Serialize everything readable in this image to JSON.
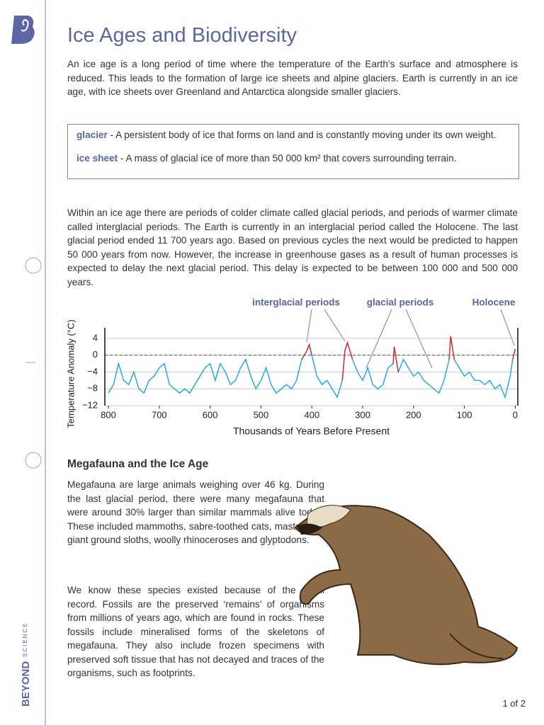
{
  "header": {
    "title": "Ice Ages and Biodiversity"
  },
  "intro": "An ice age is a long period of time where the temperature of the Earth’s surface and atmosphere is reduced. This leads to the formation of large ice sheets and alpine glaciers. Earth is currently in an ice age, with ice sheets over Greenland and Antarctica alongside smaller glaciers.",
  "definitions": [
    {
      "term": "glacier",
      "text": " - A persistent body of ice that forms on land and is constantly moving under its own weight."
    },
    {
      "term": "ice sheet",
      "text": " - A mass of glacial ice of more than 50 000 km² that covers surrounding terrain."
    }
  ],
  "paragraph2": "Within an ice age there are periods of colder climate called glacial periods, and periods of warmer climate called interglacial periods. The Earth is currently in an interglacial period called the Holocene. The last glacial period ended 11 700 years ago. Based on previous cycles the next would be predicted to happen 50 000 years from now. However, the increase in greenhouse gases as a result of human processes is expected to delay the next glacial period. This delay is expected to be between 100 000 and 500 000 years.",
  "chart_data": {
    "type": "line",
    "x_label": "Thousands of Years Before Present",
    "y_label": "Temperature  Anomaly (°C)",
    "annotations": [
      "interglacial periods",
      "glacial periods",
      "Holocene"
    ],
    "xlim": [
      807,
      -5
    ],
    "xticks": [
      800,
      700,
      600,
      500,
      400,
      300,
      200,
      100,
      0
    ],
    "ylim": [
      -12,
      6.5
    ],
    "yticks": [
      4,
      0,
      {
        "value": -4,
        "label": "−4"
      },
      {
        "value": -8,
        "label": "−8"
      },
      {
        "value": -12,
        "label": "−12"
      }
    ],
    "grid": true,
    "hline": 0,
    "x": [
      800,
      790,
      780,
      770,
      760,
      750,
      740,
      730,
      720,
      710,
      700,
      690,
      680,
      670,
      660,
      650,
      640,
      630,
      620,
      610,
      600,
      590,
      580,
      570,
      560,
      550,
      540,
      530,
      520,
      510,
      500,
      490,
      480,
      470,
      460,
      450,
      440,
      430,
      420,
      410,
      405,
      400,
      390,
      380,
      370,
      360,
      350,
      340,
      335,
      330,
      320,
      310,
      300,
      290,
      280,
      270,
      260,
      250,
      240,
      238,
      230,
      220,
      210,
      200,
      190,
      180,
      170,
      160,
      150,
      140,
      130,
      127,
      120,
      110,
      100,
      90,
      80,
      70,
      60,
      50,
      40,
      30,
      20,
      10,
      5,
      0
    ],
    "series": [
      {
        "color": "#1aa6e4",
        "highlight_color": "#e4252a",
        "values": [
          -9,
          -7,
          -2,
          -6,
          -7,
          -4,
          -8,
          -9,
          -6,
          -5,
          -3,
          -2,
          -7,
          -8,
          -9,
          -8,
          -9,
          -7,
          -5,
          -3,
          -2,
          -6,
          -2,
          -4,
          -7,
          -6,
          -3,
          -1,
          -5,
          -8,
          -6,
          -3,
          -7,
          -9,
          -8,
          -7,
          -8,
          -6,
          -1,
          1,
          2.5,
          0,
          -5,
          -7,
          -6,
          -8,
          -10,
          -6,
          1,
          3,
          -1,
          -4,
          -6,
          -3,
          -7,
          -8,
          -7,
          -3,
          -2,
          2,
          -4,
          -1,
          -3,
          -5,
          -4,
          -6,
          -7,
          -8,
          -9,
          -6,
          -1,
          4.5,
          -1,
          -3,
          -5,
          -4,
          -6,
          -6,
          -7,
          -6,
          -8,
          -7,
          -10,
          -5,
          -1,
          1.5
        ]
      }
    ]
  },
  "section": {
    "heading": "Megafauna and the Ice Age",
    "paragraphs": [
      "Megafauna are large animals weighing over 46 kg. During the last glacial period, there were many megafauna that were around 30% larger than similar mammals alive today. These included mammoths, sabre-toothed cats, mastodons, giant ground sloths, woolly rhinoceroses and glyptodons.",
      "We know these species existed because of the fossil record. Fossils are the preserved ‘remains’ of organisms from millions of years ago, which are found in rocks. These fossils include mineralised forms of the skeletons of megafauna. They also include frozen specimens with preserved soft tissue that has not decayed and traces of the organisms, such as footprints."
    ]
  },
  "brand": {
    "name": "BEYOND",
    "sub": "SCIENCE"
  },
  "footer": {
    "page": "1 of 2"
  }
}
